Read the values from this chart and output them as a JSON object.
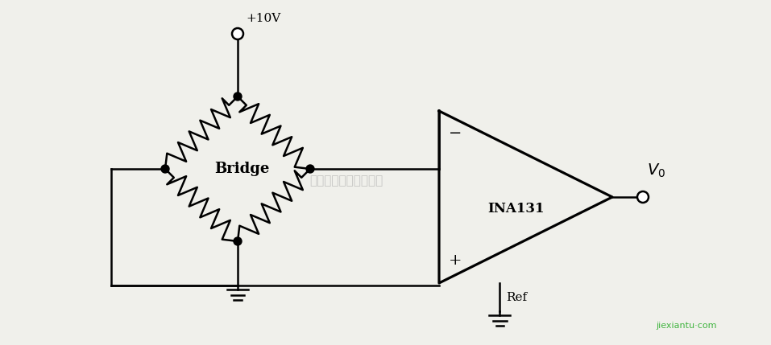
{
  "bg_color": "#f0f0eb",
  "line_color": "#000000",
  "text_color": "#000000",
  "bridge_label": "Bridge",
  "amp_label": "INA131",
  "v0_label": "$\\mathit{V}_0$",
  "vcc_label": "+10V",
  "ref_label": "Ref",
  "watermark": "杭州贵耶科技有限公司",
  "fig_width": 9.57,
  "fig_height": 4.29,
  "dpi": 100
}
